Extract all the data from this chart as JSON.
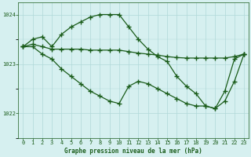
{
  "line1": [
    1023.35,
    1023.5,
    1023.55,
    1023.35,
    1023.6,
    1023.75,
    1023.85,
    1023.95,
    1024.0,
    1024.0,
    1024.0,
    1023.75,
    1023.5,
    1023.3,
    1023.15,
    1023.05,
    1022.75,
    1022.55,
    1022.4,
    1022.15,
    1022.1,
    1022.45,
    1023.1,
    1023.2
  ],
  "line2": [
    1023.35,
    1023.4,
    1023.35,
    1023.3,
    1023.3,
    1023.3,
    1023.3,
    1023.28,
    1023.28,
    1023.28,
    1023.28,
    1023.25,
    1023.22,
    1023.2,
    1023.18,
    1023.15,
    1023.13,
    1023.12,
    1023.12,
    1023.12,
    1023.12,
    1023.12,
    1023.15,
    1023.2
  ],
  "line3": [
    1023.35,
    1023.35,
    1023.2,
    1023.1,
    1022.9,
    1022.75,
    1022.6,
    1022.45,
    1022.35,
    1022.25,
    1022.2,
    1022.55,
    1022.65,
    1022.6,
    1022.5,
    1022.4,
    1022.3,
    1022.2,
    1022.15,
    1022.15,
    1022.1,
    1022.25,
    1022.65,
    1023.2
  ],
  "line_color": "#1a5c1a",
  "bg_color": "#d6f0f0",
  "grid_color": "#b0d8d8",
  "text_color": "#1a5c1a",
  "xlabel": "Graphe pression niveau de la mer (hPa)",
  "ylim": [
    1021.85,
    1024.25
  ],
  "yticks": [
    1022,
    1023,
    1024
  ],
  "xticks": [
    0,
    1,
    2,
    3,
    4,
    5,
    6,
    7,
    8,
    9,
    10,
    11,
    12,
    13,
    14,
    15,
    16,
    17,
    18,
    19,
    20,
    21,
    22,
    23
  ]
}
